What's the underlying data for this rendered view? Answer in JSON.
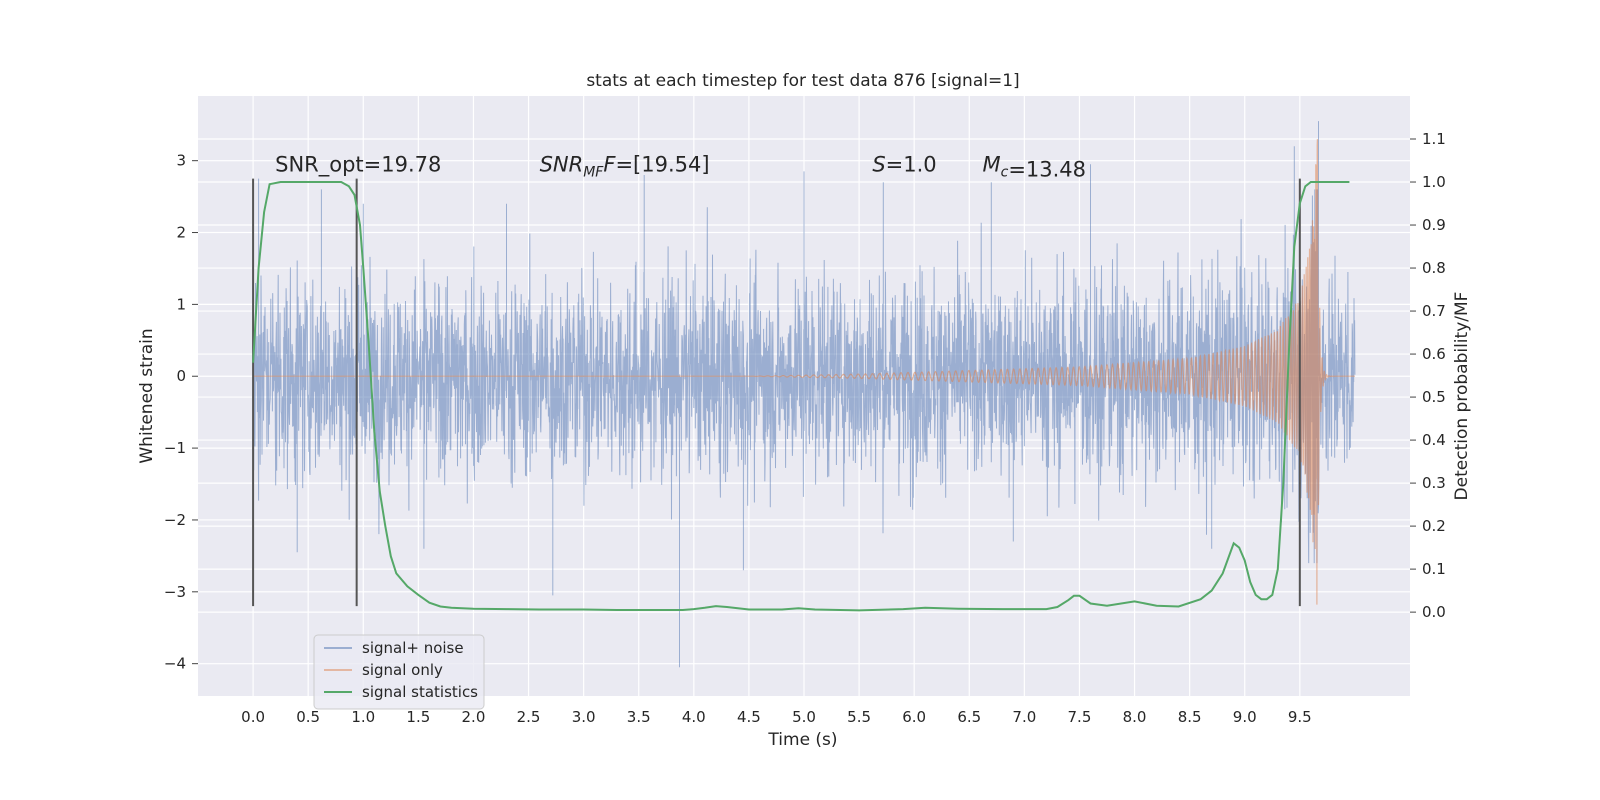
{
  "chart_data": {
    "type": "line",
    "title": "stats at each timestep for test data 876 [signal=1]",
    "xlabel": "Time (s)",
    "ylabel": "Whitened strain",
    "y2label": "Detection probability/MF",
    "xlim": [
      -0.5,
      10.5
    ],
    "ylim": [
      -4.45,
      3.9
    ],
    "y2lim": [
      -0.195,
      1.2
    ],
    "x_ticks": [
      "0.0",
      "0.5",
      "1.0",
      "1.5",
      "2.0",
      "2.5",
      "3.0",
      "3.5",
      "4.0",
      "4.5",
      "5.0",
      "5.5",
      "6.0",
      "6.5",
      "7.0",
      "7.5",
      "8.0",
      "8.5",
      "9.0",
      "9.5"
    ],
    "y_ticks": [
      "3",
      "2",
      "1",
      "0",
      "−1",
      "−2",
      "−3",
      "−4"
    ],
    "y2_ticks": [
      "1.1",
      "1.0",
      "0.9",
      "0.8",
      "0.7",
      "0.6",
      "0.5",
      "0.4",
      "0.3",
      "0.2",
      "0.1",
      "0.0"
    ],
    "grid": true,
    "legend_position": "lower-left",
    "colors": {
      "plot_bg": "#eaeaf2",
      "noise": "#4c72b0",
      "signal": "#dd8452",
      "stats": "#55a868",
      "markers": "#555555"
    },
    "series": [
      {
        "name": "signal+ noise",
        "kind": "strain",
        "x_range": [
          0.0,
          10.0
        ],
        "envelope": {
          "typical_amplitude": 1.25,
          "notable_peaks": [
            {
              "x": 0.05,
              "y": 2.75
            },
            {
              "x": 0.62,
              "y": 2.6
            },
            {
              "x": 1.0,
              "y": 2.4
            },
            {
              "x": 2.3,
              "y": 2.4
            },
            {
              "x": 3.55,
              "y": 2.8
            },
            {
              "x": 5.0,
              "y": 2.85
            },
            {
              "x": 5.72,
              "y": 2.7
            },
            {
              "x": 6.7,
              "y": 2.7
            },
            {
              "x": 7.6,
              "y": 2.95
            },
            {
              "x": 9.45,
              "y": 3.2
            },
            {
              "x": 9.67,
              "y": 3.55
            }
          ],
          "notable_troughs": [
            {
              "x": 0.4,
              "y": -2.45
            },
            {
              "x": 1.55,
              "y": -2.4
            },
            {
              "x": 2.72,
              "y": -3.05
            },
            {
              "x": 3.87,
              "y": -4.05
            },
            {
              "x": 4.45,
              "y": -2.7
            },
            {
              "x": 6.9,
              "y": -2.3
            },
            {
              "x": 8.7,
              "y": -2.4
            }
          ]
        }
      },
      {
        "name": "signal only",
        "kind": "chirp",
        "x_range": [
          0.0,
          10.0
        ],
        "merger_time": 9.66,
        "peak_amplitude": 3.3,
        "amplitude_at": [
          {
            "x": 5.5,
            "y": 0.03
          },
          {
            "x": 6.5,
            "y": 0.08
          },
          {
            "x": 7.5,
            "y": 0.13
          },
          {
            "x": 8.5,
            "y": 0.25
          },
          {
            "x": 9.0,
            "y": 0.42
          },
          {
            "x": 9.3,
            "y": 0.65
          },
          {
            "x": 9.5,
            "y": 1.1
          },
          {
            "x": 9.6,
            "y": 1.9
          },
          {
            "x": 9.66,
            "y": 3.3
          }
        ]
      },
      {
        "name": "signal statistics",
        "axis": "right",
        "x": [
          0.0,
          0.05,
          0.1,
          0.15,
          0.25,
          0.4,
          0.6,
          0.8,
          0.87,
          0.92,
          0.97,
          1.0,
          1.05,
          1.1,
          1.15,
          1.2,
          1.25,
          1.3,
          1.4,
          1.5,
          1.6,
          1.7,
          1.8,
          2.0,
          2.3,
          2.6,
          3.0,
          3.3,
          3.6,
          3.9,
          4.0,
          4.1,
          4.2,
          4.3,
          4.5,
          4.8,
          4.95,
          5.1,
          5.5,
          5.9,
          6.1,
          6.4,
          6.8,
          7.2,
          7.3,
          7.4,
          7.45,
          7.5,
          7.6,
          7.75,
          8.0,
          8.2,
          8.4,
          8.6,
          8.7,
          8.8,
          8.9,
          8.95,
          9.0,
          9.05,
          9.1,
          9.15,
          9.2,
          9.25,
          9.3,
          9.35,
          9.4,
          9.45,
          9.5,
          9.55,
          9.6,
          9.65,
          9.7,
          9.8,
          9.9,
          9.95
        ],
        "y": [
          0.58,
          0.8,
          0.93,
          0.995,
          1.0,
          1.0,
          1.0,
          1.0,
          0.99,
          0.97,
          0.9,
          0.8,
          0.62,
          0.42,
          0.28,
          0.2,
          0.13,
          0.09,
          0.06,
          0.04,
          0.022,
          0.013,
          0.01,
          0.008,
          0.007,
          0.006,
          0.006,
          0.005,
          0.005,
          0.005,
          0.007,
          0.01,
          0.014,
          0.012,
          0.006,
          0.006,
          0.009,
          0.006,
          0.004,
          0.007,
          0.01,
          0.008,
          0.007,
          0.007,
          0.012,
          0.028,
          0.038,
          0.038,
          0.02,
          0.015,
          0.025,
          0.015,
          0.013,
          0.03,
          0.05,
          0.09,
          0.16,
          0.15,
          0.12,
          0.07,
          0.04,
          0.03,
          0.03,
          0.04,
          0.1,
          0.3,
          0.6,
          0.85,
          0.95,
          0.99,
          1.0,
          1.0,
          1.0,
          1.0,
          1.0,
          1.0
        ]
      }
    ],
    "vertical_markers": [
      {
        "x": 0.0,
        "y_range": [
          -3.2,
          2.75
        ]
      },
      {
        "x": 0.94,
        "y_range": [
          -3.2,
          2.75
        ]
      },
      {
        "x": 9.5,
        "y_range": [
          -3.2,
          2.75
        ]
      }
    ],
    "annotations": [
      {
        "plain": "SNR_opt=19.78",
        "x": 0.2,
        "y": 2.85
      },
      {
        "italic": "SNR",
        "sub": "MF",
        "italic_after": "F",
        "rest": "=[19.54]",
        "x": 2.6,
        "y": 2.85
      },
      {
        "italic": "S",
        "rest": "=1.0",
        "x": 5.62,
        "y": 2.85
      },
      {
        "italic": "M",
        "sub": "c",
        "rest": "=13.48",
        "x": 6.62,
        "y": 2.85
      }
    ],
    "legend": [
      {
        "label": "signal+ noise",
        "color": "#4c72b0",
        "alpha": 0.5
      },
      {
        "label": "signal only",
        "color": "#dd8452",
        "alpha": 0.5
      },
      {
        "label": "signal statistics",
        "color": "#55a868",
        "alpha": 1.0
      }
    ]
  }
}
